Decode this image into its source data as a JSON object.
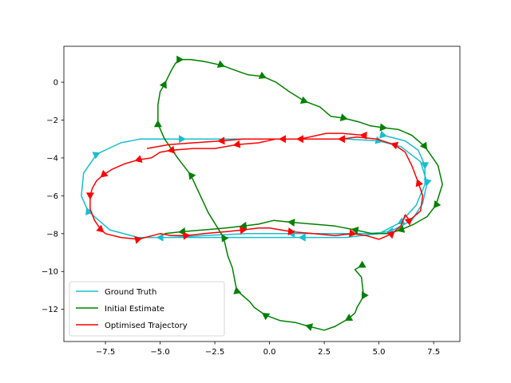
{
  "chart_data": {
    "type": "line",
    "title": "",
    "xlabel": "",
    "ylabel": "",
    "xlim": [
      -9.4,
      8.7
    ],
    "ylim": [
      -13.7,
      1.9
    ],
    "xticks": [
      -7.5,
      -5.0,
      -2.5,
      0.0,
      2.5,
      5.0,
      7.5
    ],
    "xtick_labels": [
      "−7.5",
      "−5.0",
      "−2.5",
      "0.0",
      "2.5",
      "5.0",
      "7.5"
    ],
    "yticks": [
      0,
      -2,
      -4,
      -6,
      -8,
      -10,
      -12
    ],
    "ytick_labels": [
      "0",
      "−2",
      "−4",
      "−6",
      "−8",
      "−10",
      "−12"
    ],
    "grid": false,
    "legend_position": "lower-left",
    "series": [
      {
        "name": "Ground Truth",
        "color": "#17becf",
        "x": [
          5.2,
          6.2,
          6.8,
          7.1,
          7.1,
          6.7,
          6.0,
          5.0,
          3.5,
          1.5,
          -1.0,
          -3.0,
          -5.0,
          -6.0,
          -7.3,
          -8.3,
          -8.6,
          -8.5,
          -7.9,
          -6.8,
          -5.9,
          -4.0,
          0.0,
          3.5,
          5.0,
          6.0,
          6.9,
          7.2,
          7.0,
          6.5,
          5.5,
          4.5,
          3.0,
          1.0,
          -1.0,
          -3.0,
          -4.5
        ],
        "y": [
          -2.8,
          -3.1,
          -3.6,
          -4.4,
          -5.4,
          -6.5,
          -7.4,
          -8.0,
          -8.2,
          -8.2,
          -8.2,
          -8.2,
          -8.2,
          -8.2,
          -7.8,
          -6.8,
          -6.0,
          -4.8,
          -3.8,
          -3.2,
          -3.0,
          -3.0,
          -3.0,
          -3.0,
          -3.1,
          -3.4,
          -4.2,
          -5.3,
          -6.4,
          -7.3,
          -7.9,
          -8.0,
          -8.0,
          -8.0,
          -8.0,
          -8.1,
          -8.2
        ]
      },
      {
        "name": "Initial Estimate",
        "color": "#008000",
        "x": [
          4.2,
          3.9,
          4.2,
          4.3,
          4.0,
          3.9,
          3.6,
          3.0,
          2.5,
          1.8,
          1.2,
          0.5,
          -0.2,
          -0.7,
          -0.9,
          -1.5,
          -1.7,
          -1.9,
          -2.1,
          -2.8,
          -3.2,
          -3.6,
          -4.2,
          -4.8,
          -5.1,
          -5.1,
          -5.0,
          -4.8,
          -4.5,
          -4.3,
          -4.1,
          -3.6,
          -3.0,
          -2.2,
          -1.5,
          -1.0,
          -0.3,
          0.3,
          0.9,
          1.6,
          2.3,
          2.8,
          3.4,
          4.1,
          4.6,
          5.2,
          5.9,
          6.5,
          7.1,
          7.7,
          7.9,
          7.6,
          7.2,
          6.6,
          6.0,
          5.4,
          4.7,
          3.9,
          3.0,
          2.0,
          1.0,
          0.2,
          -0.5,
          -1.2,
          -2.0,
          -3.0,
          -4.0,
          -4.8
        ],
        "y": [
          -9.7,
          -9.9,
          -10.3,
          -11.3,
          -11.9,
          -12.2,
          -12.5,
          -12.9,
          -13.1,
          -12.9,
          -12.7,
          -12.6,
          -12.3,
          -11.9,
          -11.6,
          -11.0,
          -9.8,
          -9.2,
          -8.2,
          -6.9,
          -5.9,
          -4.9,
          -4.0,
          -3.0,
          -2.2,
          -1.2,
          -0.5,
          -0.1,
          0.6,
          1.0,
          1.2,
          1.2,
          1.1,
          0.9,
          0.6,
          0.4,
          0.3,
          0.0,
          -0.5,
          -1.0,
          -1.3,
          -1.8,
          -1.9,
          -2.1,
          -2.3,
          -2.4,
          -2.5,
          -2.8,
          -3.4,
          -4.4,
          -5.4,
          -6.5,
          -7.1,
          -7.5,
          -7.8,
          -8.0,
          -8.0,
          -7.8,
          -7.6,
          -7.5,
          -7.4,
          -7.3,
          -7.5,
          -7.6,
          -7.7,
          -7.8,
          -7.9,
          -8.0
        ]
      },
      {
        "name": "Optimised Trajectory",
        "color": "#ff0000",
        "x": [
          4.3,
          3.3,
          2.6,
          1.4,
          0.3,
          -0.5,
          -1.5,
          -2.5,
          -3.5,
          -4.5,
          -5.0,
          -5.4,
          -6.0,
          -6.6,
          -7.2,
          -7.6,
          -7.9,
          -8.1,
          -8.2,
          -8.2,
          -8.0,
          -7.7,
          -7.5,
          -6.8,
          -6.0,
          -5.0,
          -4.5,
          -3.8,
          -3.0,
          -2.0,
          -1.2,
          -0.5,
          0.0,
          1.0,
          2.0,
          3.0,
          3.8,
          4.4,
          5.0,
          5.6,
          6.0,
          6.2,
          6.4,
          6.9,
          7.0,
          6.8,
          6.5,
          6.2,
          5.7,
          4.9,
          4.0,
          3.3,
          2.5,
          1.5,
          0.6,
          -0.2,
          -1.2,
          -2.2,
          -3.5,
          -4.6,
          -5.6
        ],
        "y": [
          -2.8,
          -2.7,
          -2.7,
          -3.0,
          -3.0,
          -3.2,
          -3.3,
          -3.5,
          -3.5,
          -3.6,
          -3.7,
          -4.0,
          -4.1,
          -4.3,
          -4.6,
          -4.9,
          -5.2,
          -5.6,
          -6.0,
          -6.7,
          -7.3,
          -7.8,
          -8.0,
          -8.2,
          -8.3,
          -8.0,
          -8.1,
          -8.1,
          -8.0,
          -7.9,
          -7.8,
          -7.7,
          -7.7,
          -7.9,
          -8.0,
          -8.1,
          -8.0,
          -8.1,
          -8.3,
          -8.0,
          -7.6,
          -7.0,
          -7.3,
          -6.8,
          -6.0,
          -5.3,
          -4.4,
          -3.7,
          -3.3,
          -3.0,
          -2.9,
          -3.0,
          -3.0,
          -3.0,
          -3.0,
          -3.0,
          -3.0,
          -3.1,
          -3.2,
          -3.3,
          -3.5
        ]
      }
    ]
  }
}
